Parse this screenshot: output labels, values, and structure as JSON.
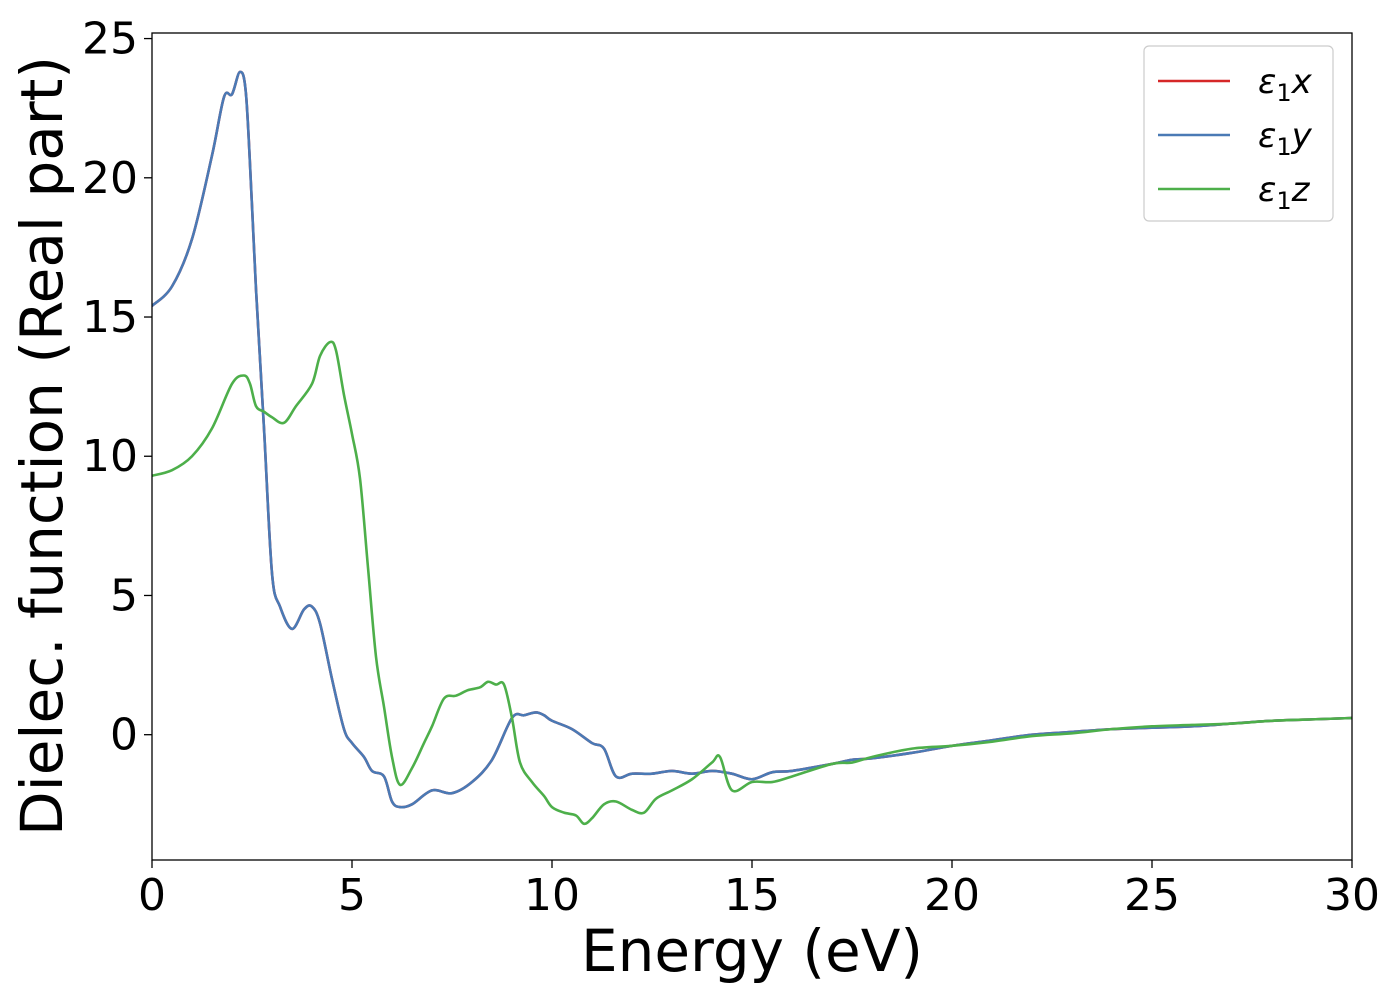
{
  "chart_data": {
    "type": "line",
    "xlabel": "Energy (eV)",
    "ylabel": "Dielec. function (Real part)",
    "xlim": [
      0,
      30
    ],
    "ylim": [
      -4.5,
      25.2
    ],
    "xticks": [
      0,
      5,
      10,
      15,
      20,
      25,
      30
    ],
    "yticks": [
      0,
      5,
      10,
      15,
      20,
      25
    ],
    "grid": false,
    "legend_position": "top-right",
    "series": [
      {
        "name": "ε₁x",
        "legend_base": "ε",
        "legend_sub": "1",
        "legend_suffix": "x",
        "color": "#d62728",
        "x": [
          0,
          0.5,
          1.0,
          1.5,
          1.8,
          2.0,
          2.2,
          2.35,
          2.5,
          2.6,
          2.8,
          3.0,
          3.2,
          3.5,
          3.8,
          4.0,
          4.2,
          4.5,
          4.8,
          5.0,
          5.3,
          5.5,
          5.8,
          6.0,
          6.2,
          6.5,
          7.0,
          7.5,
          8.0,
          8.5,
          9.0,
          9.3,
          9.6,
          9.8,
          10.0,
          10.5,
          11.0,
          11.3,
          11.6,
          12.0,
          12.5,
          13.0,
          13.5,
          14.0,
          14.5,
          15.0,
          15.5,
          16.0,
          17.0,
          17.5,
          18.0,
          19.0,
          20.0,
          21.0,
          22.0,
          23.0,
          24.0,
          25.0,
          26.0,
          27.0,
          28.0,
          29.0,
          30.0
        ],
        "y": [
          15.4,
          16.1,
          17.8,
          20.8,
          22.9,
          23.0,
          23.8,
          23.0,
          19.0,
          16.0,
          11.0,
          5.8,
          4.6,
          3.8,
          4.5,
          4.6,
          4.0,
          2.0,
          0.2,
          -0.3,
          -0.8,
          -1.3,
          -1.5,
          -2.4,
          -2.6,
          -2.5,
          -2.0,
          -2.1,
          -1.7,
          -0.9,
          0.6,
          0.7,
          0.8,
          0.7,
          0.5,
          0.2,
          -0.3,
          -0.5,
          -1.5,
          -1.4,
          -1.4,
          -1.3,
          -1.4,
          -1.3,
          -1.4,
          -1.6,
          -1.35,
          -1.3,
          -1.05,
          -0.9,
          -0.85,
          -0.65,
          -0.4,
          -0.2,
          0.0,
          0.1,
          0.2,
          0.25,
          0.3,
          0.4,
          0.5,
          0.55,
          0.6
        ]
      },
      {
        "name": "ε₁y",
        "legend_base": "ε",
        "legend_sub": "1",
        "legend_suffix": "y",
        "color": "#4a7ab5",
        "x": [
          0,
          0.5,
          1.0,
          1.5,
          1.8,
          2.0,
          2.2,
          2.35,
          2.5,
          2.6,
          2.8,
          3.0,
          3.2,
          3.5,
          3.8,
          4.0,
          4.2,
          4.5,
          4.8,
          5.0,
          5.3,
          5.5,
          5.8,
          6.0,
          6.2,
          6.5,
          7.0,
          7.5,
          8.0,
          8.5,
          9.0,
          9.3,
          9.6,
          9.8,
          10.0,
          10.5,
          11.0,
          11.3,
          11.6,
          12.0,
          12.5,
          13.0,
          13.5,
          14.0,
          14.5,
          15.0,
          15.5,
          16.0,
          17.0,
          17.5,
          18.0,
          19.0,
          20.0,
          21.0,
          22.0,
          23.0,
          24.0,
          25.0,
          26.0,
          27.0,
          28.0,
          29.0,
          30.0
        ],
        "y": [
          15.4,
          16.1,
          17.8,
          20.8,
          22.9,
          23.0,
          23.8,
          23.0,
          19.0,
          16.0,
          11.0,
          5.8,
          4.6,
          3.8,
          4.5,
          4.6,
          4.0,
          2.0,
          0.2,
          -0.3,
          -0.8,
          -1.3,
          -1.5,
          -2.4,
          -2.6,
          -2.5,
          -2.0,
          -2.1,
          -1.7,
          -0.9,
          0.6,
          0.7,
          0.8,
          0.7,
          0.5,
          0.2,
          -0.3,
          -0.5,
          -1.5,
          -1.4,
          -1.4,
          -1.3,
          -1.4,
          -1.3,
          -1.4,
          -1.6,
          -1.35,
          -1.3,
          -1.05,
          -0.9,
          -0.85,
          -0.65,
          -0.4,
          -0.2,
          0.0,
          0.1,
          0.2,
          0.25,
          0.3,
          0.4,
          0.5,
          0.55,
          0.6
        ]
      },
      {
        "name": "ε₁z",
        "legend_base": "ε",
        "legend_sub": "1",
        "legend_suffix": "z",
        "color": "#4daf4a",
        "x": [
          0,
          0.5,
          1.0,
          1.5,
          2.0,
          2.3,
          2.45,
          2.6,
          2.8,
          3.0,
          3.3,
          3.6,
          4.0,
          4.2,
          4.45,
          4.6,
          4.8,
          5.0,
          5.2,
          5.4,
          5.6,
          5.8,
          6.0,
          6.2,
          6.5,
          6.8,
          7.0,
          7.3,
          7.6,
          7.9,
          8.2,
          8.4,
          8.6,
          8.8,
          9.0,
          9.2,
          9.5,
          9.8,
          10.0,
          10.3,
          10.6,
          10.8,
          11.0,
          11.3,
          11.6,
          12.0,
          12.3,
          12.6,
          13.0,
          13.5,
          14.0,
          14.2,
          14.5,
          15.0,
          15.5,
          16.0,
          17.0,
          17.5,
          18.0,
          19.0,
          20.0,
          21.0,
          22.0,
          23.0,
          24.0,
          25.0,
          26.0,
          27.0,
          28.0,
          29.0,
          30.0
        ],
        "y": [
          9.3,
          9.5,
          10.0,
          11.0,
          12.6,
          12.9,
          12.6,
          11.8,
          11.6,
          11.4,
          11.2,
          11.8,
          12.6,
          13.6,
          14.1,
          13.8,
          12.2,
          10.8,
          9.2,
          6.0,
          2.8,
          1.0,
          -0.8,
          -1.8,
          -1.2,
          -0.3,
          0.3,
          1.3,
          1.4,
          1.6,
          1.7,
          1.9,
          1.8,
          1.8,
          0.6,
          -1.0,
          -1.7,
          -2.2,
          -2.6,
          -2.8,
          -2.9,
          -3.2,
          -3.0,
          -2.5,
          -2.4,
          -2.7,
          -2.8,
          -2.3,
          -2.0,
          -1.6,
          -1.0,
          -0.8,
          -2.0,
          -1.7,
          -1.7,
          -1.5,
          -1.05,
          -1.0,
          -0.8,
          -0.5,
          -0.4,
          -0.25,
          -0.05,
          0.05,
          0.2,
          0.3,
          0.35,
          0.4,
          0.5,
          0.55,
          0.6
        ]
      }
    ]
  }
}
